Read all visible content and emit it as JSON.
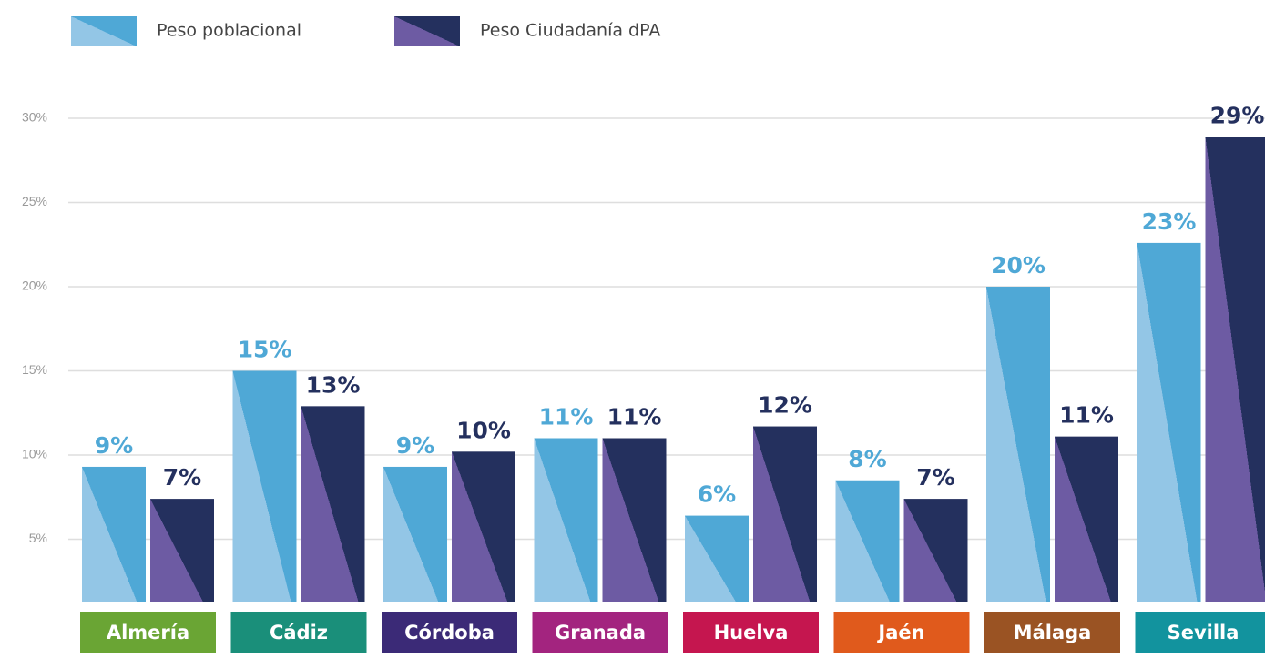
{
  "chart_data": {
    "type": "bar",
    "categories": [
      "Almería",
      "Cádiz",
      "Córdoba",
      "Granada",
      "Huelva",
      "Jaén",
      "Málaga",
      "Sevilla"
    ],
    "category_colors": [
      "#6aa534",
      "#1a8f7a",
      "#3b2a77",
      "#a3247f",
      "#c5164f",
      "#e05a1c",
      "#9a5323",
      "#12939e"
    ],
    "series": [
      {
        "name": "Peso poblacional",
        "color": "#4fa8d6",
        "light_color": "#93c6e6",
        "values": [
          9.3,
          15,
          9.3,
          11,
          6.4,
          8.5,
          20,
          22.6
        ],
        "value_labels": [
          "9%",
          "15%",
          "9%",
          "11%",
          "6%",
          "8%",
          "20%",
          "23%"
        ]
      },
      {
        "name": "Peso Ciudadanía dPA",
        "color": "#24305e",
        "light_color": "#6d5ba3",
        "values": [
          7.4,
          12.9,
          10.2,
          11,
          11.7,
          7.4,
          11.1,
          28.9
        ],
        "value_labels": [
          "7%",
          "13%",
          "10%",
          "11%",
          "12%",
          "7%",
          "11%",
          "29%"
        ]
      }
    ],
    "ylim": [
      0,
      30
    ],
    "yticks": [
      {
        "value": 5,
        "label": "5%"
      },
      {
        "value": 10,
        "label": "10%"
      },
      {
        "value": 15,
        "label": "15%"
      },
      {
        "value": 20,
        "label": "20%"
      },
      {
        "value": 25,
        "label": "25%"
      },
      {
        "value": 30,
        "label": "30%"
      }
    ],
    "grid": true
  }
}
